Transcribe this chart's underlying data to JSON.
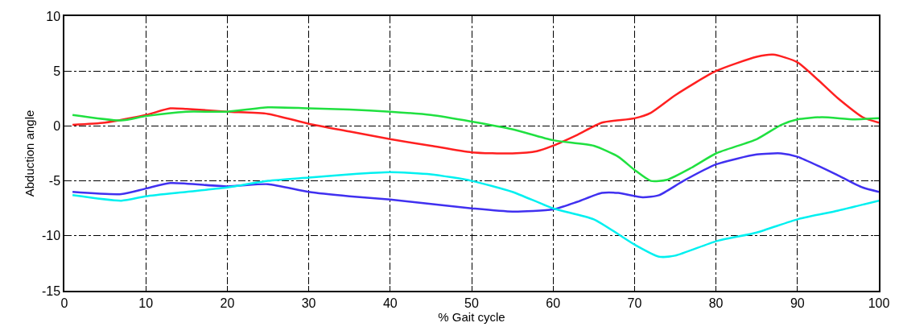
{
  "chart_data": {
    "type": "line",
    "xlabel": "% Gait cycle",
    "ylabel": "Abduction angle",
    "xlim": [
      0,
      100
    ],
    "xticks": [
      0,
      10,
      20,
      30,
      40,
      50,
      60,
      70,
      80,
      90,
      100
    ],
    "ylim": [
      -15,
      10
    ],
    "yticks": [
      -15,
      -10,
      -5,
      0,
      5,
      10
    ],
    "grid": true,
    "marker": "none",
    "line_style": "solid",
    "series": [
      {
        "color": "#ff2020",
        "x": [
          1,
          5,
          10,
          13,
          15,
          20,
          25,
          30,
          35,
          40,
          45,
          50,
          55,
          58,
          60,
          63,
          66,
          70,
          72,
          75,
          80,
          85,
          87,
          90,
          95,
          98,
          100
        ],
        "values": [
          0.1,
          0.3,
          1.0,
          1.6,
          1.55,
          1.3,
          1.1,
          0.2,
          -0.5,
          -1.2,
          -1.8,
          -2.4,
          -2.5,
          -2.3,
          -1.8,
          -0.8,
          0.3,
          0.7,
          1.2,
          2.8,
          5.0,
          6.3,
          6.5,
          5.8,
          2.5,
          0.8,
          0.3
        ]
      },
      {
        "color": "#20e040",
        "x": [
          1,
          7,
          10,
          15,
          20,
          25,
          30,
          35,
          40,
          45,
          50,
          55,
          60,
          65,
          68,
          70,
          72,
          74,
          77,
          80,
          85,
          88,
          90,
          93,
          97,
          100
        ],
        "values": [
          1.0,
          0.5,
          0.9,
          1.3,
          1.3,
          1.7,
          1.6,
          1.5,
          1.3,
          1.0,
          0.4,
          -0.3,
          -1.3,
          -1.8,
          -2.8,
          -4.0,
          -5.0,
          -4.9,
          -3.8,
          -2.5,
          -1.2,
          0.1,
          0.6,
          0.8,
          0.6,
          0.7
        ]
      },
      {
        "color": "#4030f0",
        "x": [
          1,
          7,
          10,
          13,
          20,
          25,
          30,
          35,
          40,
          45,
          50,
          55,
          60,
          63,
          66,
          68,
          71,
          73,
          76,
          80,
          85,
          88,
          90,
          95,
          98,
          100
        ],
        "values": [
          -6.0,
          -6.2,
          -5.7,
          -5.2,
          -5.5,
          -5.3,
          -6.0,
          -6.4,
          -6.7,
          -7.1,
          -7.5,
          -7.8,
          -7.6,
          -6.9,
          -6.1,
          -6.1,
          -6.5,
          -6.3,
          -5.0,
          -3.5,
          -2.6,
          -2.5,
          -2.8,
          -4.5,
          -5.6,
          -6.0
        ]
      },
      {
        "color": "#00f0f0",
        "x": [
          1,
          7,
          10,
          15,
          20,
          25,
          30,
          35,
          40,
          45,
          50,
          55,
          60,
          65,
          70,
          73,
          75,
          80,
          85,
          90,
          95,
          100
        ],
        "values": [
          -6.3,
          -6.8,
          -6.4,
          -6.0,
          -5.6,
          -5.0,
          -4.7,
          -4.4,
          -4.2,
          -4.4,
          -5.0,
          -6.0,
          -7.5,
          -8.5,
          -10.8,
          -11.9,
          -11.8,
          -10.5,
          -9.7,
          -8.5,
          -7.7,
          -6.8
        ]
      }
    ]
  }
}
